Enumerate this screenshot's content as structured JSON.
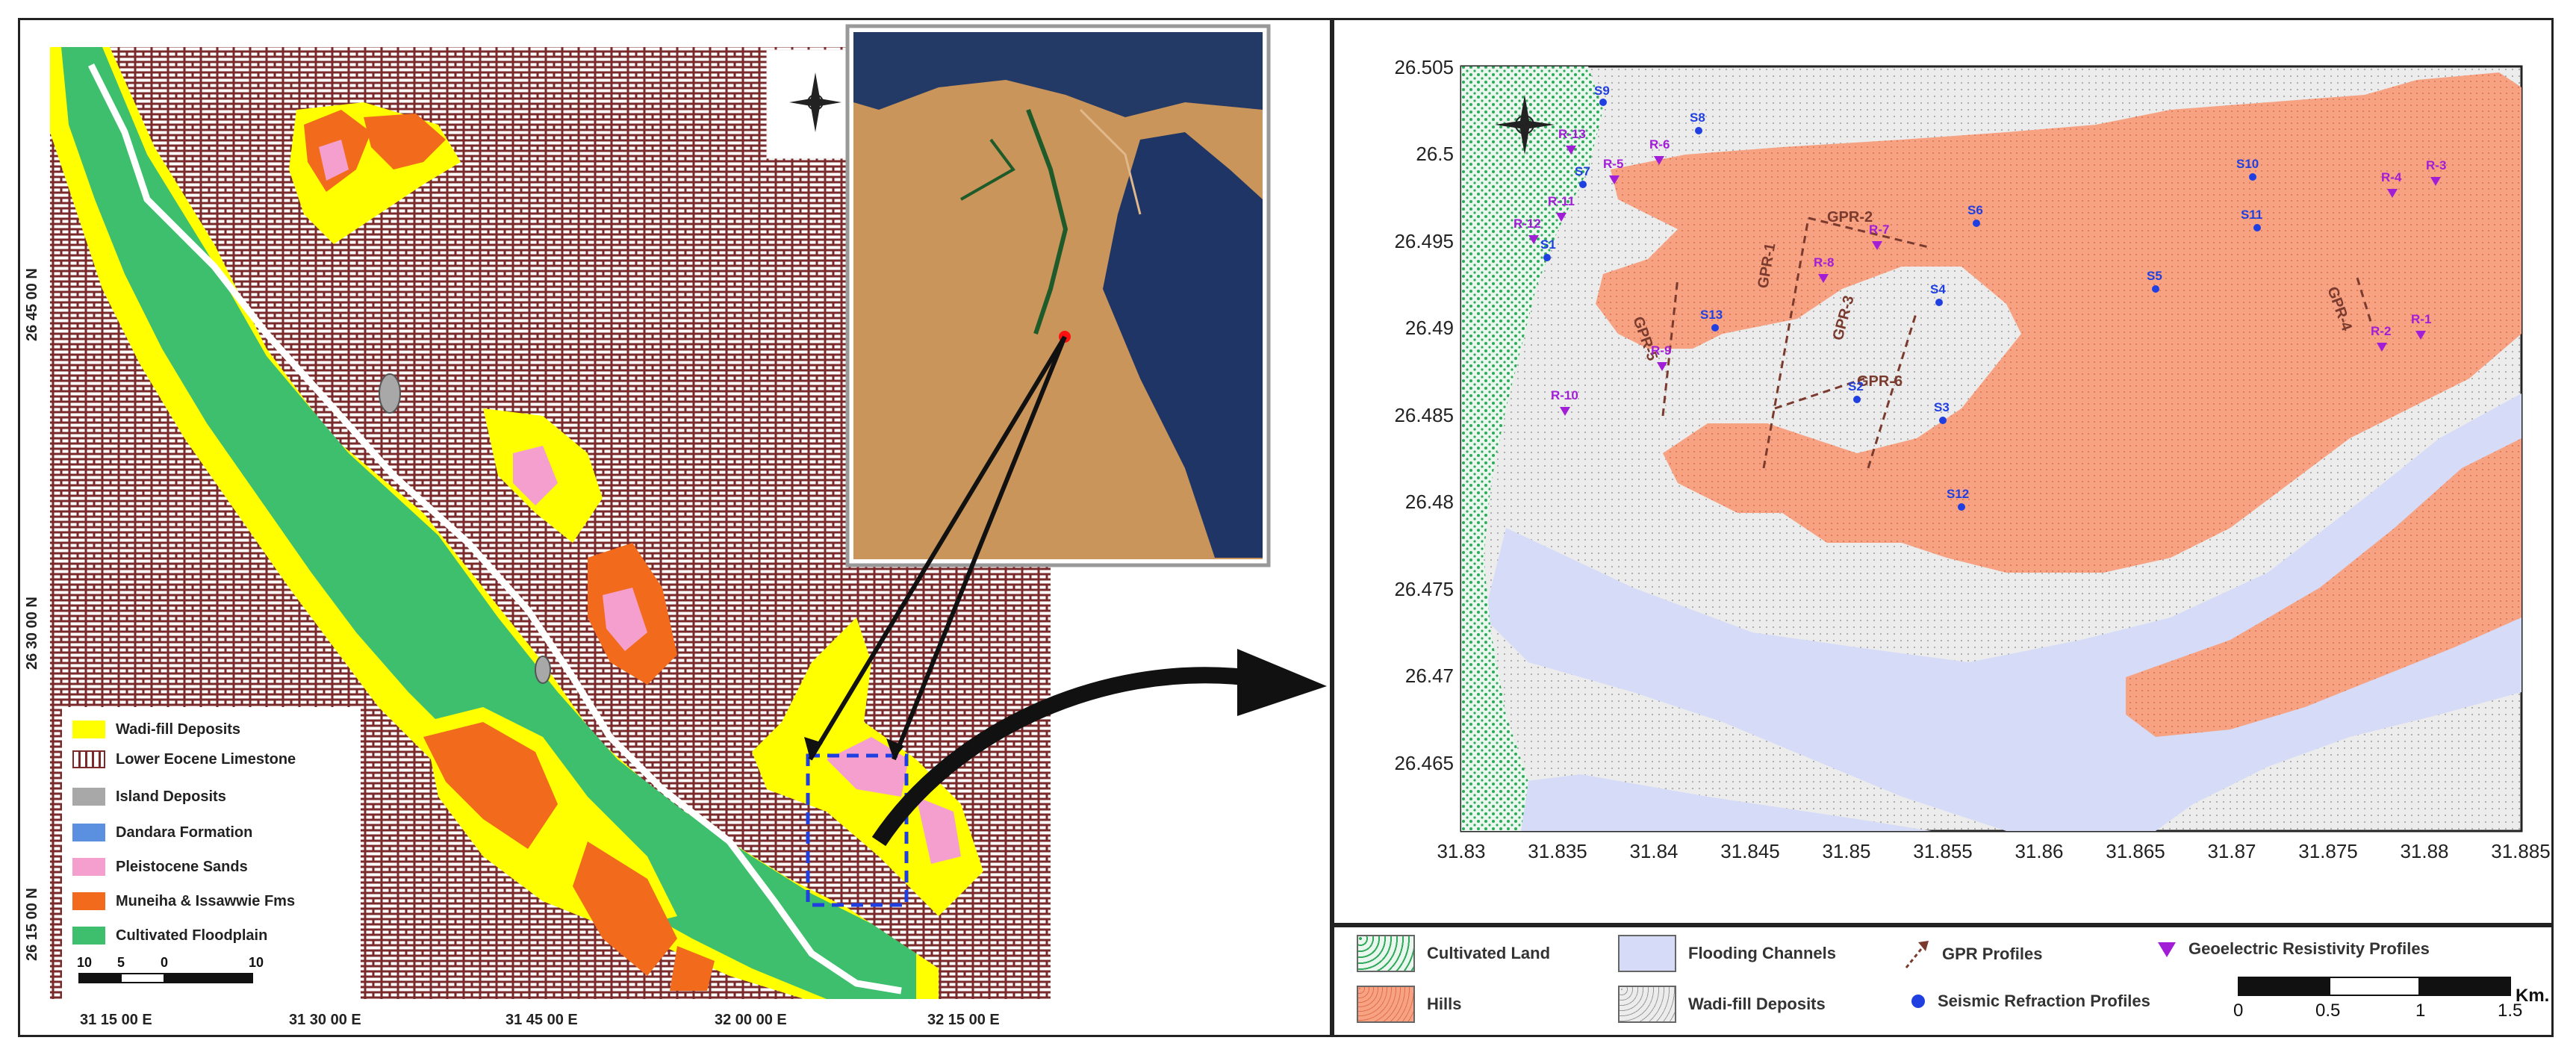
{
  "left_map": {
    "lat_labels": [
      "26 45 00 N",
      "26 30 00 N",
      "26 15 00 N"
    ],
    "lon_labels": [
      "31 15 00 E",
      "31 30 00 E",
      "31 45 00 E",
      "32 00 00 E",
      "32 15 00 E"
    ],
    "legend": [
      {
        "label": "Wadi-fill Deposits",
        "color": "#ffff00"
      },
      {
        "label": "Lower Eocene Limestone",
        "color": "#7a2a2a"
      },
      {
        "label": "Island Deposits",
        "color": "#a8a8a8"
      },
      {
        "label": "Dandara Formation",
        "color": "#5b8fe0"
      },
      {
        "label": "Pleistocene Sands",
        "color": "#f59fcf"
      },
      {
        "label": "Muneiha & Issawwie Fms",
        "color": "#f26a1b"
      },
      {
        "label": "Cultivated Floodplain",
        "color": "#3dbf6e"
      }
    ],
    "scalebar_labels": [
      "10",
      "5",
      "0",
      "10"
    ],
    "colors": {
      "limestone": "#7a2a2a",
      "wadi": "#ffff00",
      "floodplain": "#3dbf6e",
      "pleistocene": "#f59fcf",
      "muneiha": "#f26a1b",
      "river": "#ffffff"
    }
  },
  "right_map": {
    "y_ticks": [
      "26.505",
      "26.5",
      "26.495",
      "26.49",
      "26.485",
      "26.48",
      "26.475",
      "26.47",
      "26.465"
    ],
    "x_ticks": [
      "31.83",
      "31.835",
      "31.84",
      "31.845",
      "31.85",
      "31.855",
      "31.86",
      "31.865",
      "31.87",
      "31.875",
      "31.88",
      "31.885"
    ],
    "seismic_points": [
      "S9",
      "S8",
      "S7",
      "S10",
      "S11",
      "S1",
      "S6",
      "S5",
      "S4",
      "S13",
      "S2",
      "S3",
      "S12"
    ],
    "resistivity_points": [
      "R-13",
      "R-6",
      "R-5",
      "R-3",
      "R-4",
      "R-11",
      "R-12",
      "R-8",
      "R-7",
      "R-1",
      "R-2",
      "R-9",
      "R-10"
    ],
    "gpr_profiles": [
      "GPR-2",
      "GPR-1",
      "GPR-3",
      "GPR-4",
      "GPR-5",
      "GPR-6"
    ],
    "colors": {
      "cultivated": "#2faa5a",
      "hills": "#f6a283",
      "flooding": "#d6dcf7",
      "wadi": "#e6e6e6",
      "seismic": "#1f3fe0",
      "resistivity": "#a21ed6",
      "gpr": "#7a3b2e"
    }
  },
  "bottom_legend": {
    "items": [
      {
        "label": "Cultivated Land"
      },
      {
        "label": "Flooding Channels"
      },
      {
        "label": "GPR Profiles"
      },
      {
        "label": "Geoelectric Resistivity Profiles"
      },
      {
        "label": "Hills"
      },
      {
        "label": "Wadi-fill Deposits"
      },
      {
        "label": "Seismic Refraction Profiles"
      }
    ],
    "scale_labels": [
      "0",
      "0.5",
      "1",
      "1.5",
      "Km."
    ]
  }
}
